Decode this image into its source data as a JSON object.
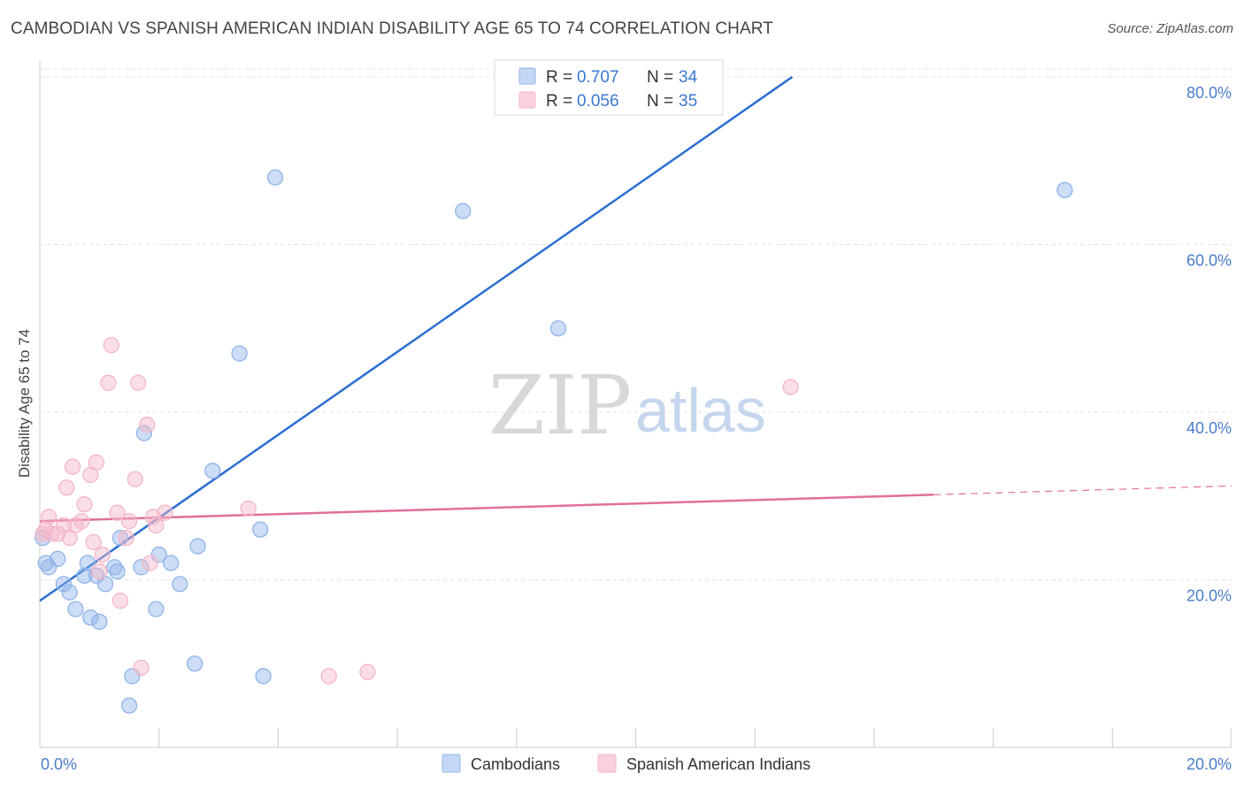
{
  "chart_data": {
    "type": "scatter",
    "title": "CAMBODIAN VS SPANISH AMERICAN INDIAN DISABILITY AGE 65 TO 74 CORRELATION CHART",
    "source": "Source: ZipAtlas.com",
    "ylabel": "Disability Age 65 to 74",
    "xlabel": "",
    "xlim": [
      0,
      20
    ],
    "ylim": [
      0,
      82
    ],
    "x_tick_labels": [
      "0.0%",
      "20.0%"
    ],
    "y_ticks": [
      {
        "value": 20,
        "label": "20.0%"
      },
      {
        "value": 40,
        "label": "40.0%"
      },
      {
        "value": 60,
        "label": "60.0%"
      },
      {
        "value": 80,
        "label": "80.0%"
      }
    ],
    "watermark": {
      "part1": "ZIP",
      "part2": "atlas"
    },
    "legend": [
      {
        "r_label": "R =",
        "r_value": "0.707",
        "n_label": "N =",
        "n_value": "34"
      },
      {
        "r_label": "R =",
        "r_value": "0.056",
        "n_label": "N =",
        "n_value": "35"
      }
    ],
    "series": [
      {
        "name": "Cambodians",
        "color": "#8fb4e8",
        "line_color": "#2b6fd0",
        "trend": {
          "x0": 0,
          "y0": 17.5,
          "x1": 20,
          "y1": 116.5,
          "solid_to": 18.25
        },
        "points": [
          [
            0.05,
            25.0
          ],
          [
            0.1,
            22.0
          ],
          [
            0.15,
            21.5
          ],
          [
            0.3,
            22.5
          ],
          [
            0.4,
            19.5
          ],
          [
            0.5,
            18.5
          ],
          [
            0.6,
            16.5
          ],
          [
            0.75,
            20.5
          ],
          [
            0.8,
            22.0
          ],
          [
            0.85,
            15.5
          ],
          [
            0.95,
            20.5
          ],
          [
            1.0,
            15.0
          ],
          [
            1.1,
            19.5
          ],
          [
            1.25,
            21.5
          ],
          [
            1.3,
            21.0
          ],
          [
            1.35,
            25.0
          ],
          [
            1.55,
            8.5
          ],
          [
            1.5,
            5.0
          ],
          [
            1.7,
            21.5
          ],
          [
            1.75,
            37.5
          ],
          [
            1.95,
            16.5
          ],
          [
            2.0,
            23.0
          ],
          [
            2.2,
            22.0
          ],
          [
            2.35,
            19.5
          ],
          [
            2.6,
            10.0
          ],
          [
            2.65,
            24.0
          ],
          [
            2.9,
            33.0
          ],
          [
            3.35,
            47.0
          ],
          [
            3.7,
            26.0
          ],
          [
            3.75,
            8.5
          ],
          [
            3.95,
            68.0
          ],
          [
            7.1,
            64.0
          ],
          [
            8.7,
            50.0
          ],
          [
            17.2,
            66.5
          ]
        ]
      },
      {
        "name": "Spanish American Indians",
        "color": "#f4b6c8",
        "line_color": "#e0709a",
        "trend": {
          "x0": 0,
          "y0": 27.0,
          "x1": 20,
          "y1": 31.2,
          "solid_to": 15.0
        },
        "points": [
          [
            0.05,
            25.5
          ],
          [
            0.1,
            26.0
          ],
          [
            0.15,
            27.5
          ],
          [
            0.2,
            25.5
          ],
          [
            0.3,
            25.5
          ],
          [
            0.4,
            26.5
          ],
          [
            0.45,
            31.0
          ],
          [
            0.5,
            25.0
          ],
          [
            0.55,
            33.5
          ],
          [
            0.6,
            26.5
          ],
          [
            0.7,
            27.0
          ],
          [
            0.75,
            29.0
          ],
          [
            0.85,
            32.5
          ],
          [
            0.9,
            24.5
          ],
          [
            0.95,
            34.0
          ],
          [
            1.0,
            21.0
          ],
          [
            1.05,
            23.0
          ],
          [
            1.15,
            43.5
          ],
          [
            1.2,
            48.0
          ],
          [
            1.35,
            17.5
          ],
          [
            1.45,
            25.0
          ],
          [
            1.5,
            27.0
          ],
          [
            1.6,
            32.0
          ],
          [
            1.65,
            43.5
          ],
          [
            1.7,
            9.5
          ],
          [
            1.8,
            38.5
          ],
          [
            1.85,
            22.0
          ],
          [
            1.9,
            27.5
          ],
          [
            1.95,
            26.5
          ],
          [
            2.1,
            28.0
          ],
          [
            3.5,
            28.5
          ],
          [
            4.85,
            8.5
          ],
          [
            5.5,
            9.0
          ],
          [
            12.6,
            43.0
          ],
          [
            1.3,
            28.0
          ]
        ]
      }
    ]
  }
}
